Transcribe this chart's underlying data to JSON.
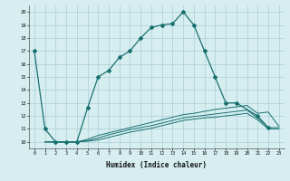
{
  "xlabel": "Humidex (Indice chaleur)",
  "ylabel": "",
  "xlim": [
    -0.5,
    23.5
  ],
  "ylim": [
    9.5,
    20.5
  ],
  "xticks": [
    0,
    1,
    2,
    3,
    4,
    5,
    6,
    7,
    8,
    9,
    10,
    11,
    12,
    13,
    14,
    15,
    16,
    17,
    18,
    19,
    20,
    21,
    22,
    23
  ],
  "yticks": [
    10,
    11,
    12,
    13,
    14,
    15,
    16,
    17,
    18,
    19,
    20
  ],
  "bg_color": "#d6eef0",
  "grid_color": "#aacdd6",
  "line_color": "#1a7070",
  "lines": [
    {
      "x": [
        0,
        1,
        2,
        3,
        4,
        5,
        6,
        7,
        8,
        9,
        10,
        11,
        12,
        13,
        14,
        15,
        16,
        17,
        18,
        19,
        21,
        22
      ],
      "y": [
        17,
        11,
        10,
        10,
        10,
        12.6,
        15,
        15.5,
        16.5,
        17,
        18,
        18.8,
        19,
        19.1,
        20,
        19,
        17,
        15,
        13,
        13,
        12,
        11.1
      ],
      "marker": true
    },
    {
      "x": [
        1,
        2,
        3,
        4,
        5,
        6,
        7,
        8,
        9,
        10,
        11,
        12,
        13,
        14,
        15,
        16,
        17,
        18,
        19,
        20,
        21,
        22,
        23
      ],
      "y": [
        10,
        10,
        10,
        10,
        10.2,
        10.5,
        10.7,
        10.9,
        11.1,
        11.3,
        11.5,
        11.7,
        11.9,
        12.1,
        12.2,
        12.35,
        12.5,
        12.6,
        12.7,
        12.8,
        12.2,
        12.3,
        11.2
      ],
      "marker": false
    },
    {
      "x": [
        1,
        2,
        3,
        4,
        5,
        6,
        7,
        8,
        9,
        10,
        11,
        12,
        13,
        14,
        15,
        16,
        17,
        18,
        19,
        20,
        21,
        22,
        23
      ],
      "y": [
        10,
        10,
        10,
        10,
        10.1,
        10.3,
        10.55,
        10.75,
        10.95,
        11.1,
        11.25,
        11.45,
        11.65,
        11.85,
        11.95,
        12.05,
        12.15,
        12.25,
        12.35,
        12.45,
        11.85,
        11.1,
        11.1
      ],
      "marker": false
    },
    {
      "x": [
        1,
        2,
        3,
        4,
        5,
        6,
        7,
        8,
        9,
        10,
        11,
        12,
        13,
        14,
        15,
        16,
        17,
        18,
        19,
        20,
        21,
        22,
        23
      ],
      "y": [
        10,
        10,
        10,
        10,
        10.05,
        10.15,
        10.35,
        10.55,
        10.75,
        10.9,
        11.05,
        11.25,
        11.45,
        11.65,
        11.75,
        11.85,
        11.9,
        12.0,
        12.1,
        12.2,
        11.7,
        11.0,
        11.0
      ],
      "marker": false
    }
  ]
}
